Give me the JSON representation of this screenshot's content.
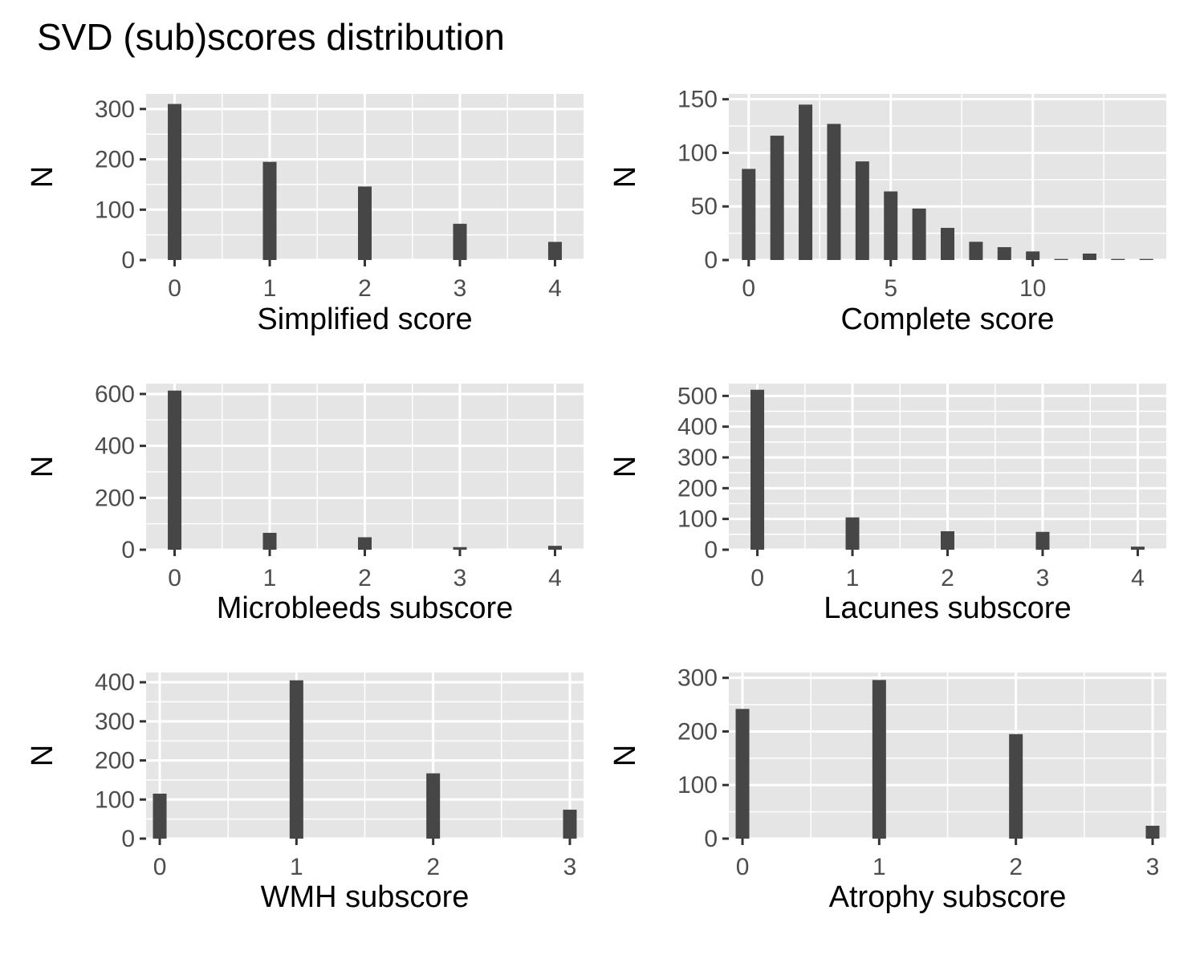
{
  "figure": {
    "title": "SVD (sub)scores distribution"
  },
  "colors": {
    "panel_bg": "#e5e5e5",
    "grid_line": "#ffffff",
    "bar_fill": "#464646",
    "tick_text": "#4d4d4d",
    "tick_mark": "#333333",
    "axis_title": "#000000"
  },
  "chart_data": [
    {
      "type": "bar",
      "xlabel": "Simplified score",
      "ylabel": "N",
      "x": [
        0,
        1,
        2,
        3,
        4
      ],
      "values": [
        310,
        195,
        146,
        72,
        36
      ],
      "xlim": [
        -0.3,
        4.3
      ],
      "ylim": [
        0,
        330
      ],
      "xticks": [
        0,
        1,
        2,
        3,
        4
      ],
      "yticks": [
        0,
        100,
        200,
        300
      ],
      "grid": true
    },
    {
      "type": "bar",
      "xlabel": "Complete score",
      "ylabel": "N",
      "x": [
        0,
        1,
        2,
        3,
        4,
        5,
        6,
        7,
        8,
        9,
        10,
        11,
        12,
        13,
        14
      ],
      "values": [
        85,
        116,
        145,
        127,
        92,
        64,
        48,
        30,
        17,
        12,
        8,
        1,
        6,
        1,
        1
      ],
      "xlim": [
        -0.7,
        14.7
      ],
      "ylim": [
        0,
        155
      ],
      "xticks": [
        0,
        5,
        10
      ],
      "yticks": [
        0,
        50,
        100,
        150
      ],
      "grid": true
    },
    {
      "type": "bar",
      "xlabel": "Microbleeds subscore",
      "ylabel": "N",
      "x": [
        0,
        1,
        2,
        3,
        4
      ],
      "values": [
        613,
        65,
        48,
        10,
        15
      ],
      "xlim": [
        -0.3,
        4.3
      ],
      "ylim": [
        0,
        640
      ],
      "xticks": [
        0,
        1,
        2,
        3,
        4
      ],
      "yticks": [
        0,
        200,
        400,
        600
      ],
      "grid": true
    },
    {
      "type": "bar",
      "xlabel": "Lacunes subscore",
      "ylabel": "N",
      "x": [
        0,
        1,
        2,
        3,
        4
      ],
      "values": [
        520,
        105,
        60,
        58,
        10
      ],
      "xlim": [
        -0.3,
        4.3
      ],
      "ylim": [
        0,
        540
      ],
      "xticks": [
        0,
        1,
        2,
        3,
        4
      ],
      "yticks": [
        0,
        100,
        200,
        300,
        400,
        500
      ],
      "grid": true
    },
    {
      "type": "bar",
      "xlabel": "WMH subscore",
      "ylabel": "N",
      "x": [
        0,
        1,
        2,
        3
      ],
      "values": [
        115,
        405,
        167,
        74
      ],
      "xlim": [
        -0.1,
        3.1
      ],
      "ylim": [
        0,
        425
      ],
      "xticks": [
        0,
        1,
        2,
        3
      ],
      "yticks": [
        0,
        100,
        200,
        300,
        400
      ],
      "grid": true
    },
    {
      "type": "bar",
      "xlabel": "Atrophy subscore",
      "ylabel": "N",
      "x": [
        0,
        1,
        2,
        3
      ],
      "values": [
        242,
        296,
        195,
        24
      ],
      "xlim": [
        -0.1,
        3.1
      ],
      "ylim": [
        0,
        310
      ],
      "xticks": [
        0,
        1,
        2,
        3
      ],
      "yticks": [
        0,
        100,
        200,
        300
      ],
      "grid": true
    }
  ]
}
